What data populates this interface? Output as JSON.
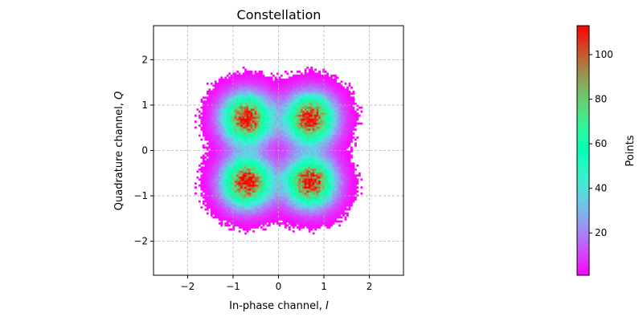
{
  "chart_data": {
    "type": "heatmap",
    "title": "Constellation",
    "xlabel": "In-phase channel, ",
    "xlabel_symbol": "I",
    "ylabel": "Quadrature channel, ",
    "ylabel_symbol": "Q",
    "xlim": [
      -2.75,
      2.75
    ],
    "ylim": [
      -2.75,
      2.75
    ],
    "x_ticks": [
      -2,
      -1,
      0,
      1,
      2
    ],
    "y_ticks": [
      -2,
      -1,
      0,
      1,
      2
    ],
    "x_tick_labels": [
      "−2",
      "−1",
      "0",
      "1",
      "2"
    ],
    "y_tick_labels": [
      "−2",
      "−1",
      "0",
      "1",
      "2"
    ],
    "grid": true,
    "bins": 100,
    "clusters": [
      {
        "i": -0.7,
        "q": 0.7,
        "peak": 112
      },
      {
        "i": 0.7,
        "q": 0.7,
        "peak": 112
      },
      {
        "i": -0.7,
        "q": -0.7,
        "peak": 112
      },
      {
        "i": 0.7,
        "q": -0.7,
        "peak": 112
      }
    ],
    "cluster_sigma": 0.36,
    "colormap": "rainbow",
    "colorbar": {
      "label": "Points",
      "min": 1,
      "max": 113,
      "ticks": [
        20,
        40,
        60,
        80,
        100
      ],
      "tick_labels": [
        "20",
        "40",
        "60",
        "80",
        "100"
      ]
    }
  }
}
